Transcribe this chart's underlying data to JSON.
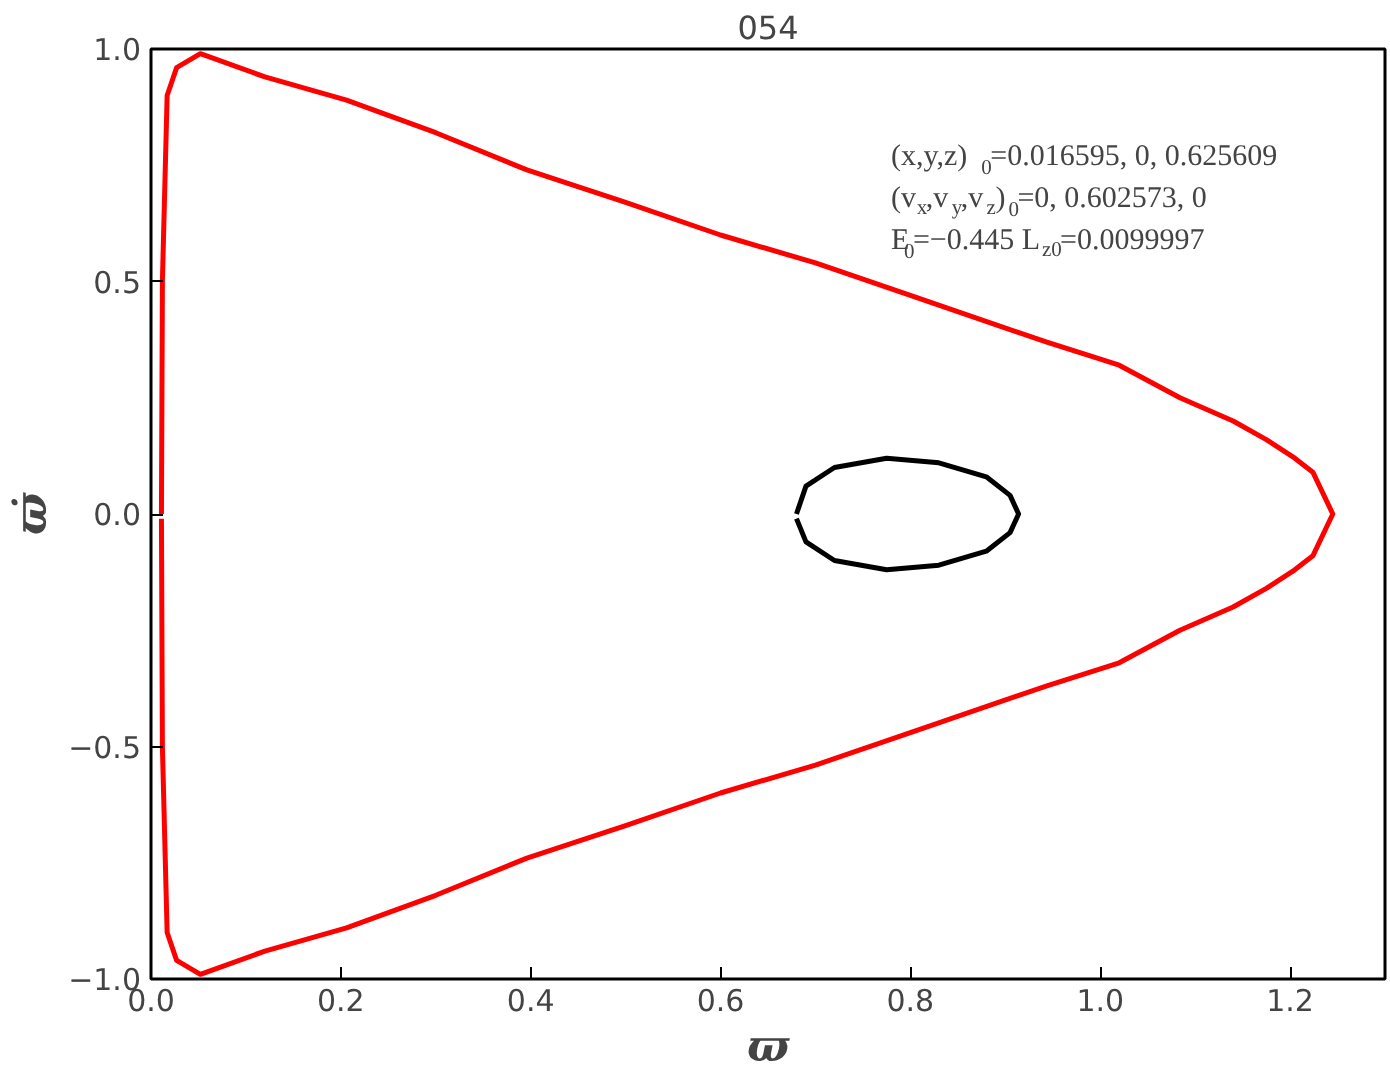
{
  "chart_data": {
    "type": "line",
    "title": "054",
    "xlabel": "ϖ",
    "ylabel": "ϖ̇",
    "xlim": [
      0,
      1.3
    ],
    "ylim": [
      -1,
      1
    ],
    "xticks": [
      {
        "value": 0,
        "label": "0.0"
      },
      {
        "value": 0.2,
        "label": "0.2"
      },
      {
        "value": 0.4,
        "label": "0.4"
      },
      {
        "value": 0.6,
        "label": "0.6"
      },
      {
        "value": 0.8,
        "label": "0.8"
      },
      {
        "value": 1,
        "label": "1.0"
      },
      {
        "value": 1.2,
        "label": "1.2"
      }
    ],
    "yticks": [
      {
        "value": -1,
        "label": "−1.0"
      },
      {
        "value": -0.5,
        "label": "−0.5"
      },
      {
        "value": 0,
        "label": "0.0"
      },
      {
        "value": 0.5,
        "label": "0.5"
      },
      {
        "value": 1,
        "label": "1.0"
      }
    ],
    "grid": false,
    "marker": "none",
    "line_style": "solid",
    "annotations": [
      "(x,y,z)$_{0}$=0.016595, 0, 0.625609",
      "(v$_{x}$,v$_{y}$,v$_{z}$)$_{0}$=0, 0.602573, 0",
      "E$_{0}$=−0.445  L$_{z0}$=0.0099997"
    ],
    "series": [
      {
        "color": "#ff0000",
        "x": [
          0.011,
          0.012,
          0.017,
          0.027,
          0.052,
          0.12,
          0.206,
          0.3,
          0.396,
          0.5,
          0.6,
          0.7,
          0.8,
          0.943,
          1.02,
          1.084,
          1.14,
          1.175,
          1.205,
          1.224,
          1.245,
          1.224,
          1.205,
          1.175,
          1.14,
          1.084,
          1.02,
          0.943,
          0.8,
          0.7,
          0.6,
          0.5,
          0.396,
          0.3,
          0.206,
          0.12,
          0.052,
          0.027,
          0.017,
          0.012,
          0.011
        ],
        "values": [
          0,
          0.5,
          0.9,
          0.96,
          0.99,
          0.94,
          0.89,
          0.82,
          0.74,
          0.67,
          0.6,
          0.54,
          0.47,
          0.37,
          0.32,
          0.25,
          0.2,
          0.16,
          0.12,
          0.09,
          0,
          -0.09,
          -0.12,
          -0.16,
          -0.2,
          -0.25,
          -0.32,
          -0.37,
          -0.47,
          -0.54,
          -0.6,
          -0.67,
          -0.74,
          -0.82,
          -0.89,
          -0.94,
          -0.99,
          -0.96,
          -0.9,
          -0.5,
          -0.01
        ]
      },
      {
        "color": "#000000",
        "x": [
          0.68,
          0.69,
          0.72,
          0.775,
          0.83,
          0.88,
          0.905,
          0.914,
          0.905,
          0.88,
          0.83,
          0.775,
          0.72,
          0.69,
          0.68
        ],
        "values": [
          0,
          0.06,
          0.1,
          0.12,
          0.11,
          0.08,
          0.04,
          0,
          -0.04,
          -0.08,
          -0.11,
          -0.12,
          -0.1,
          -0.06,
          -0.01
        ]
      }
    ]
  }
}
